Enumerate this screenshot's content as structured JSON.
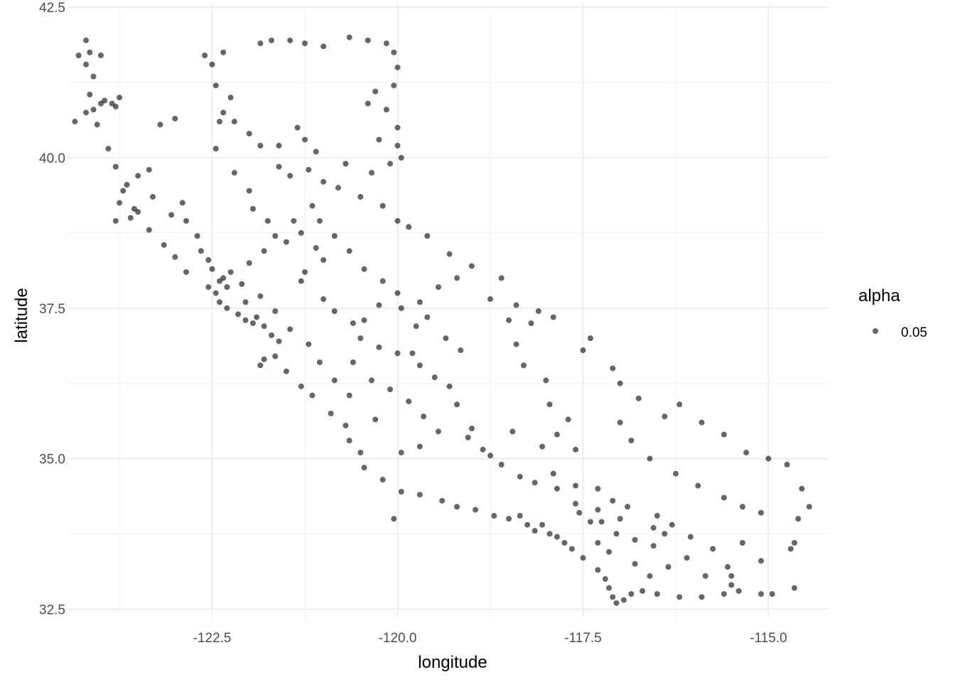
{
  "chart_data": {
    "type": "scatter",
    "xlabel": "longitude",
    "ylabel": "latitude",
    "xlim": [
      -124.45,
      -114.2
    ],
    "ylim": [
      32.35,
      42.55
    ],
    "x_ticks": [
      -122.5,
      -120.0,
      -117.5,
      -115.0
    ],
    "x_tick_labels": [
      "-122.5",
      "-120.0",
      "-117.5",
      "-115.0"
    ],
    "y_ticks": [
      32.5,
      35.0,
      37.5,
      40.0,
      42.5
    ],
    "y_tick_labels": [
      "32.5",
      "35.0",
      "37.5",
      "40.0",
      "42.5"
    ],
    "grid": true,
    "point_color": "#000000",
    "point_opacity": 0.6,
    "legend": {
      "title": "alpha",
      "position": "right",
      "entries": [
        {
          "label": "0.05"
        }
      ]
    },
    "series": [
      {
        "values": [
          [
            -124.2,
            41.95
          ],
          [
            -124.15,
            41.75
          ],
          [
            -124.3,
            41.7
          ],
          [
            -124.0,
            41.7
          ],
          [
            -124.2,
            41.55
          ],
          [
            -124.1,
            41.35
          ],
          [
            -124.15,
            41.05
          ],
          [
            -124.1,
            40.8
          ],
          [
            -124.2,
            40.75
          ],
          [
            -124.0,
            40.9
          ],
          [
            -123.85,
            40.9
          ],
          [
            -124.35,
            40.6
          ],
          [
            -124.05,
            40.55
          ],
          [
            -123.95,
            40.95
          ],
          [
            -123.75,
            41.0
          ],
          [
            -123.8,
            40.85
          ],
          [
            -123.9,
            40.15
          ],
          [
            -123.7,
            39.45
          ],
          [
            -123.75,
            39.25
          ],
          [
            -123.8,
            38.95
          ],
          [
            -123.5,
            39.7
          ],
          [
            -123.35,
            39.8
          ],
          [
            -123.5,
            39.1
          ],
          [
            -123.3,
            39.35
          ],
          [
            -123.6,
            39.0
          ],
          [
            -123.2,
            40.55
          ],
          [
            -123.0,
            40.65
          ],
          [
            -122.9,
            39.25
          ],
          [
            -123.05,
            39.05
          ],
          [
            -122.85,
            38.95
          ],
          [
            -122.7,
            38.7
          ],
          [
            -122.65,
            38.45
          ],
          [
            -122.55,
            38.3
          ],
          [
            -122.5,
            38.15
          ],
          [
            -122.35,
            38.0
          ],
          [
            -122.3,
            37.85
          ],
          [
            -122.45,
            37.75
          ],
          [
            -122.4,
            37.6
          ],
          [
            -122.3,
            37.5
          ],
          [
            -122.15,
            37.4
          ],
          [
            -122.05,
            37.3
          ],
          [
            -121.95,
            37.25
          ],
          [
            -121.9,
            37.35
          ],
          [
            -121.8,
            37.2
          ],
          [
            -121.7,
            37.05
          ],
          [
            -121.6,
            36.95
          ],
          [
            -121.8,
            36.65
          ],
          [
            -121.85,
            36.55
          ],
          [
            -121.65,
            36.7
          ],
          [
            -121.5,
            36.45
          ],
          [
            -121.3,
            36.2
          ],
          [
            -121.15,
            36.05
          ],
          [
            -120.9,
            35.75
          ],
          [
            -120.7,
            35.55
          ],
          [
            -120.65,
            35.3
          ],
          [
            -120.5,
            35.1
          ],
          [
            -120.45,
            34.85
          ],
          [
            -120.2,
            34.65
          ],
          [
            -119.95,
            34.45
          ],
          [
            -119.7,
            34.4
          ],
          [
            -119.4,
            34.3
          ],
          [
            -119.2,
            34.2
          ],
          [
            -118.95,
            34.15
          ],
          [
            -118.7,
            34.05
          ],
          [
            -118.5,
            34.0
          ],
          [
            -118.35,
            34.05
          ],
          [
            -118.25,
            33.9
          ],
          [
            -118.15,
            33.8
          ],
          [
            -118.05,
            33.9
          ],
          [
            -117.95,
            33.75
          ],
          [
            -117.85,
            33.7
          ],
          [
            -117.75,
            33.6
          ],
          [
            -117.65,
            33.5
          ],
          [
            -117.5,
            33.35
          ],
          [
            -117.3,
            33.15
          ],
          [
            -117.2,
            33.0
          ],
          [
            -117.15,
            32.85
          ],
          [
            -117.1,
            32.7
          ],
          [
            -117.05,
            32.6
          ],
          [
            -116.95,
            32.65
          ],
          [
            -116.85,
            32.75
          ],
          [
            -116.7,
            32.8
          ],
          [
            -116.5,
            32.75
          ],
          [
            -116.2,
            32.7
          ],
          [
            -115.9,
            32.7
          ],
          [
            -115.6,
            32.75
          ],
          [
            -115.5,
            32.9
          ],
          [
            -115.4,
            32.8
          ],
          [
            -115.1,
            32.75
          ],
          [
            -114.95,
            32.75
          ],
          [
            -114.65,
            32.85
          ],
          [
            -114.7,
            33.5
          ],
          [
            -114.65,
            33.6
          ],
          [
            -114.6,
            34.0
          ],
          [
            -114.45,
            34.2
          ],
          [
            -114.55,
            34.5
          ],
          [
            -114.75,
            34.9
          ],
          [
            -115.0,
            35.0
          ],
          [
            -115.3,
            35.1
          ],
          [
            -115.6,
            35.4
          ],
          [
            -115.9,
            35.6
          ],
          [
            -116.2,
            35.9
          ],
          [
            -116.4,
            35.7
          ],
          [
            -116.75,
            36.0
          ],
          [
            -117.0,
            36.25
          ],
          [
            -117.1,
            36.5
          ],
          [
            -117.4,
            37.0
          ],
          [
            -117.5,
            36.8
          ],
          [
            -117.9,
            37.35
          ],
          [
            -118.1,
            37.45
          ],
          [
            -118.4,
            37.55
          ],
          [
            -118.5,
            37.3
          ],
          [
            -118.75,
            37.65
          ],
          [
            -118.6,
            38.0
          ],
          [
            -119.0,
            38.2
          ],
          [
            -119.3,
            38.4
          ],
          [
            -119.6,
            38.7
          ],
          [
            -119.85,
            38.85
          ],
          [
            -120.0,
            38.95
          ],
          [
            -120.2,
            39.2
          ],
          [
            -120.5,
            39.35
          ],
          [
            -120.8,
            39.5
          ],
          [
            -121.0,
            39.6
          ],
          [
            -121.2,
            39.8
          ],
          [
            -121.45,
            39.7
          ],
          [
            -121.6,
            39.85
          ],
          [
            -121.85,
            40.2
          ],
          [
            -122.0,
            40.4
          ],
          [
            -122.2,
            40.6
          ],
          [
            -122.35,
            40.75
          ],
          [
            -122.25,
            41.0
          ],
          [
            -122.45,
            41.2
          ],
          [
            -122.5,
            41.55
          ],
          [
            -122.6,
            41.7
          ],
          [
            -122.35,
            41.75
          ],
          [
            -121.85,
            41.9
          ],
          [
            -121.7,
            41.95
          ],
          [
            -121.45,
            41.95
          ],
          [
            -121.25,
            41.9
          ],
          [
            -121.0,
            41.85
          ],
          [
            -120.65,
            42.0
          ],
          [
            -120.4,
            41.95
          ],
          [
            -120.15,
            41.9
          ],
          [
            -120.05,
            41.75
          ],
          [
            -120.0,
            41.5
          ],
          [
            -120.05,
            41.2
          ],
          [
            -120.3,
            41.1
          ],
          [
            -120.4,
            40.9
          ],
          [
            -120.15,
            40.8
          ],
          [
            -120.0,
            40.5
          ],
          [
            -120.25,
            40.3
          ],
          [
            -120.0,
            40.2
          ],
          [
            -119.95,
            40.0
          ],
          [
            -120.1,
            39.9
          ],
          [
            -120.35,
            39.75
          ],
          [
            -120.7,
            39.9
          ],
          [
            -121.1,
            40.1
          ],
          [
            -121.25,
            40.3
          ],
          [
            -121.35,
            40.5
          ],
          [
            -121.6,
            40.2
          ],
          [
            -122.4,
            40.6
          ],
          [
            -122.45,
            40.15
          ],
          [
            -122.2,
            39.75
          ],
          [
            -122.0,
            39.45
          ],
          [
            -121.95,
            39.15
          ],
          [
            -121.75,
            38.95
          ],
          [
            -121.5,
            38.6
          ],
          [
            -121.3,
            38.75
          ],
          [
            -121.1,
            38.5
          ],
          [
            -121.0,
            38.3
          ],
          [
            -121.25,
            38.1
          ],
          [
            -121.3,
            37.95
          ],
          [
            -121.0,
            37.65
          ],
          [
            -120.85,
            37.45
          ],
          [
            -120.6,
            37.25
          ],
          [
            -120.5,
            37.0
          ],
          [
            -120.25,
            36.85
          ],
          [
            -120.0,
            36.75
          ],
          [
            -119.8,
            36.75
          ],
          [
            -119.7,
            36.55
          ],
          [
            -119.5,
            36.35
          ],
          [
            -119.3,
            36.2
          ],
          [
            -119.2,
            35.9
          ],
          [
            -119.0,
            35.5
          ],
          [
            -119.05,
            35.35
          ],
          [
            -118.85,
            35.15
          ],
          [
            -118.75,
            35.05
          ],
          [
            -118.6,
            34.9
          ],
          [
            -118.35,
            34.7
          ],
          [
            -118.15,
            34.6
          ],
          [
            -117.85,
            34.5
          ],
          [
            -117.6,
            34.55
          ],
          [
            -117.3,
            34.5
          ],
          [
            -117.1,
            34.3
          ],
          [
            -116.9,
            34.2
          ],
          [
            -116.5,
            34.05
          ],
          [
            -116.3,
            33.9
          ],
          [
            -116.05,
            33.7
          ],
          [
            -115.75,
            33.5
          ],
          [
            -115.55,
            33.2
          ],
          [
            -115.5,
            33.05
          ],
          [
            -117.05,
            33.75
          ],
          [
            -117.25,
            33.95
          ],
          [
            -117.4,
            33.95
          ],
          [
            -117.55,
            34.1
          ],
          [
            -117.3,
            34.15
          ],
          [
            -117.6,
            34.25
          ],
          [
            -117.0,
            34.0
          ],
          [
            -116.55,
            33.85
          ],
          [
            -116.4,
            33.75
          ],
          [
            -119.15,
            36.8
          ],
          [
            -119.35,
            37.0
          ],
          [
            -119.75,
            37.2
          ],
          [
            -119.6,
            37.35
          ],
          [
            -119.95,
            37.5
          ],
          [
            -120.25,
            37.55
          ],
          [
            -120.45,
            37.3
          ],
          [
            -120.6,
            36.6
          ],
          [
            -120.35,
            36.3
          ],
          [
            -120.1,
            36.15
          ],
          [
            -119.85,
            35.95
          ],
          [
            -119.65,
            35.7
          ],
          [
            -119.45,
            35.45
          ],
          [
            -119.7,
            35.2
          ],
          [
            -119.95,
            35.1
          ],
          [
            -120.3,
            35.65
          ],
          [
            -120.65,
            36.05
          ],
          [
            -120.85,
            36.3
          ],
          [
            -121.05,
            36.6
          ],
          [
            -121.2,
            36.9
          ],
          [
            -121.45,
            37.15
          ],
          [
            -121.65,
            37.45
          ],
          [
            -121.85,
            37.7
          ],
          [
            -122.05,
            37.6
          ],
          [
            -122.1,
            37.9
          ],
          [
            -122.25,
            38.1
          ],
          [
            -122.0,
            38.25
          ],
          [
            -121.8,
            38.45
          ],
          [
            -121.65,
            38.7
          ],
          [
            -121.4,
            38.95
          ],
          [
            -121.15,
            39.2
          ],
          [
            -121.05,
            38.95
          ],
          [
            -120.85,
            38.7
          ],
          [
            -120.65,
            38.45
          ],
          [
            -120.45,
            38.15
          ],
          [
            -120.2,
            37.95
          ],
          [
            -120.0,
            37.75
          ],
          [
            -119.7,
            37.6
          ],
          [
            -119.45,
            37.85
          ],
          [
            -119.2,
            38.0
          ],
          [
            -117.0,
            35.6
          ],
          [
            -116.85,
            35.3
          ],
          [
            -116.6,
            35.0
          ],
          [
            -116.25,
            34.75
          ],
          [
            -115.95,
            34.55
          ],
          [
            -115.6,
            34.35
          ],
          [
            -115.35,
            34.2
          ],
          [
            -115.1,
            34.1
          ],
          [
            -115.35,
            33.6
          ],
          [
            -115.1,
            33.3
          ],
          [
            -115.85,
            33.05
          ],
          [
            -116.1,
            33.35
          ],
          [
            -116.35,
            33.2
          ],
          [
            -116.6,
            33.05
          ],
          [
            -116.8,
            33.25
          ],
          [
            -116.55,
            33.55
          ],
          [
            -116.8,
            33.65
          ],
          [
            -117.15,
            33.45
          ],
          [
            -117.3,
            33.6
          ],
          [
            -117.9,
            34.75
          ],
          [
            -117.6,
            35.15
          ],
          [
            -117.7,
            35.65
          ],
          [
            -117.95,
            35.9
          ],
          [
            -118.0,
            36.3
          ],
          [
            -118.3,
            36.55
          ],
          [
            -118.4,
            36.9
          ],
          [
            -118.2,
            37.25
          ],
          [
            -117.85,
            35.4
          ],
          [
            -118.05,
            35.2
          ],
          [
            -118.45,
            35.45
          ],
          [
            -120.05,
            34.0
          ],
          [
            -122.4,
            37.95
          ],
          [
            -122.55,
            37.85
          ],
          [
            -122.85,
            38.1
          ],
          [
            -123.0,
            38.35
          ],
          [
            -123.15,
            38.55
          ],
          [
            -123.35,
            38.8
          ],
          [
            -123.55,
            39.15
          ],
          [
            -123.65,
            39.55
          ],
          [
            -123.8,
            39.85
          ]
        ]
      }
    ]
  }
}
